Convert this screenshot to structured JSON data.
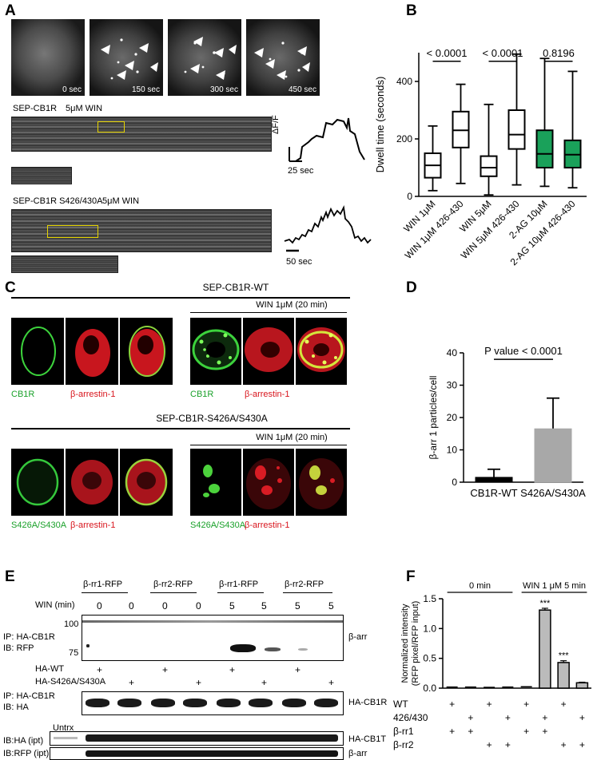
{
  "panels": {
    "A": "A",
    "B": "B",
    "C": "C",
    "D": "D",
    "E": "E",
    "F": "F"
  },
  "panel_a": {
    "timestamps": [
      "0 sec",
      "150 sec",
      "300 sec",
      "450 sec"
    ],
    "kymo1_label": "SEP-CB1R",
    "kymo1_cond": "5μM WIN",
    "kymo2_label": "SEP-CB1R S426/430A",
    "kymo2_cond": "5μM WIN",
    "trace_ylabel": "ΔF/F",
    "scale1": "25 sec",
    "scale2": "50 sec"
  },
  "panel_c": {
    "title_wt": "SEP-CB1R-WT",
    "title_mut": "SEP-CB1R-S426A/S430A",
    "win1": "WIN 1μM (20 min)",
    "win2": "WIN 1μM (20 min)",
    "lbl_cb1r_1": "CB1R",
    "lbl_arr_1": "β-arrestin-1",
    "lbl_cb1r_2": "CB1R",
    "lbl_arr_2": "β-arrestin-1",
    "lbl_mut_1": "S426A/S430A",
    "lbl_arr_3": "β-arrestin-1",
    "lbl_mut_2": "S426A/S430A",
    "lbl_arr_4": "β-arrestin-1"
  },
  "panel_e": {
    "groups": [
      "β-rr1-RFP",
      "β-rr2-RFP",
      "β-rr1-RFP",
      "β-rr2-RFP"
    ],
    "win_label": "WIN (min)",
    "win_values": [
      "0",
      "0",
      "0",
      "0",
      "5",
      "5",
      "5",
      "5"
    ],
    "mw_100": "100",
    "mw_75": "75",
    "blot1_left1": "IP: HA-CB1R",
    "blot1_left2": "IB: RFP",
    "blot1_right": "β-arr",
    "ha_wt": "HA-WT",
    "ha_mut": "HA-S426A/S430A",
    "plus": "+",
    "blot2_left1": "IP: HA-CB1R",
    "blot2_left2": "IB: HA",
    "blot2_right": "HA-CB1R",
    "untrx": "Untrx",
    "blot3_left": "IB:HA (ipt)",
    "blot3_right": "HA-CB1T",
    "blot4_left": "IB:RFP (ipt)",
    "blot4_right": "β-arr"
  },
  "chart_data": [
    {
      "panel": "B",
      "type": "box",
      "ylabel": "Dwell time (seconds)",
      "ylim": [
        0,
        500
      ],
      "yticks": [
        0,
        200,
        400
      ],
      "categories": [
        "WIN 1μM",
        "WIN 1μM  426-430",
        "WIN 5μM",
        "WIN 5μM  426-430",
        "2-AG 10μM",
        "2-AG 10μM  426-430"
      ],
      "boxes": [
        {
          "min": 20,
          "q1": 65,
          "median": 108,
          "q3": 150,
          "max": 245,
          "fill": "white"
        },
        {
          "min": 45,
          "q1": 170,
          "median": 230,
          "q3": 295,
          "max": 390,
          "fill": "white"
        },
        {
          "min": 5,
          "q1": 70,
          "median": 100,
          "q3": 140,
          "max": 320,
          "fill": "white"
        },
        {
          "min": 40,
          "q1": 165,
          "median": 215,
          "q3": 300,
          "max": 495,
          "fill": "white"
        },
        {
          "min": 35,
          "q1": 100,
          "median": 148,
          "q3": 230,
          "max": 480,
          "fill": "#1aa15a"
        },
        {
          "min": 30,
          "q1": 100,
          "median": 145,
          "q3": 195,
          "max": 435,
          "fill": "#1aa15a"
        }
      ],
      "pvalues": [
        "< 0.0001",
        "< 0.0001",
        "0.8196"
      ]
    },
    {
      "panel": "D",
      "type": "bar",
      "ylabel": "β-arr 1 particles/cell",
      "ylim": [
        0,
        40
      ],
      "yticks": [
        0,
        10,
        20,
        30,
        40
      ],
      "categories": [
        "CB1R-WT",
        "S426A/S430A"
      ],
      "values": [
        1.5,
        16.5
      ],
      "errors": [
        2.5,
        9.5
      ],
      "colors": [
        "#000000",
        "#a8a8a8"
      ],
      "annotation": "P value < 0.0001"
    },
    {
      "panel": "F",
      "type": "bar",
      "ylabel": "Normalized intensity (RFP pixel/RFP input)",
      "ylabel_line1": "Normalized intensity",
      "ylabel_line2": "(RFP pixel/RFP input)",
      "ylim": [
        0,
        1.5
      ],
      "yticks": [
        0.0,
        0.5,
        1.0,
        1.5
      ],
      "values": [
        0.005,
        0.005,
        0.0,
        0.005,
        0.01,
        1.31,
        0.43,
        0.09
      ],
      "errors": [
        0,
        0,
        0,
        0,
        0,
        0.03,
        0.03,
        0.01
      ],
      "significance": [
        "",
        "",
        "",
        "",
        "",
        "***",
        "***",
        ""
      ],
      "group_labels": [
        "0 min",
        "WIN 1 μM 5 min"
      ],
      "rows": [
        {
          "name": "WT",
          "marks": [
            "+",
            "",
            "+",
            "",
            "+",
            "",
            "+",
            ""
          ]
        },
        {
          "name": "426/430",
          "marks": [
            "",
            "+",
            "",
            "+",
            "",
            "+",
            "",
            "+"
          ]
        },
        {
          "name": "β-rr1",
          "marks": [
            "+",
            "+",
            "",
            "",
            "+",
            "+",
            "",
            ""
          ]
        },
        {
          "name": "β-rr2",
          "marks": [
            "",
            "",
            "+",
            "+",
            "",
            "",
            "+",
            "+"
          ]
        }
      ]
    }
  ]
}
